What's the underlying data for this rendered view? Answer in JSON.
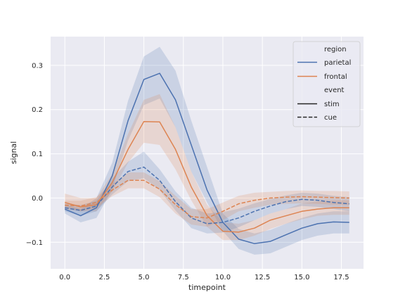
{
  "chart_data": {
    "type": "line",
    "title": "",
    "xlabel": "timepoint",
    "ylabel": "signal",
    "xlim": [
      -0.9,
      18.9
    ],
    "ylim": [
      -0.16,
      0.365
    ],
    "xticks": [
      0,
      2.5,
      5,
      7.5,
      10,
      12.5,
      15,
      17.5
    ],
    "xtick_labels": [
      "0.0",
      "2.5",
      "5.0",
      "7.5",
      "10.0",
      "12.5",
      "15.0",
      "17.5"
    ],
    "yticks": [
      -0.1,
      0,
      0.1,
      0.2,
      0.3
    ],
    "ytick_labels": [
      "−0.1",
      "0.0",
      "0.1",
      "0.2",
      "0.3"
    ],
    "grid": true,
    "background": "#eaeaf2",
    "legend": {
      "placement": "top-right",
      "hue_title": "region",
      "style_title": "event",
      "hue_items": [
        {
          "label": "parietal",
          "color": "#4c72b0"
        },
        {
          "label": "frontal",
          "color": "#dd8452"
        }
      ],
      "style_items": [
        {
          "label": "stim",
          "dash": "solid"
        },
        {
          "label": "cue",
          "dash": "dashed"
        }
      ]
    },
    "x": [
      0,
      1,
      2,
      3,
      4,
      5,
      6,
      7,
      8,
      9,
      10,
      11,
      12,
      13,
      14,
      15,
      16,
      17,
      18
    ],
    "series": [
      {
        "name": "parietal",
        "event": "stim",
        "color": "#4c72b0",
        "dash": "solid",
        "values": [
          -0.025,
          -0.04,
          -0.022,
          0.05,
          0.175,
          0.268,
          0.282,
          0.222,
          0.12,
          0.018,
          -0.055,
          -0.093,
          -0.103,
          -0.098,
          -0.083,
          -0.068,
          -0.058,
          -0.054,
          -0.055
        ],
        "ci_low": [
          -0.035,
          -0.055,
          -0.045,
          0.02,
          0.13,
          0.21,
          0.225,
          0.16,
          0.06,
          -0.01,
          -0.075,
          -0.115,
          -0.128,
          -0.125,
          -0.11,
          -0.095,
          -0.085,
          -0.08,
          -0.08
        ],
        "ci_high": [
          -0.015,
          -0.025,
          0.0,
          0.08,
          0.22,
          0.32,
          0.342,
          0.288,
          0.175,
          0.07,
          -0.035,
          -0.07,
          -0.08,
          -0.072,
          -0.058,
          -0.045,
          -0.035,
          -0.03,
          -0.03
        ]
      },
      {
        "name": "frontal",
        "event": "stim",
        "color": "#dd8452",
        "dash": "solid",
        "values": [
          -0.01,
          -0.02,
          -0.015,
          0.035,
          0.11,
          0.173,
          0.172,
          0.11,
          0.025,
          -0.04,
          -0.075,
          -0.077,
          -0.068,
          -0.05,
          -0.04,
          -0.03,
          -0.025,
          -0.022,
          -0.022
        ],
        "ci_low": [
          -0.02,
          -0.03,
          -0.03,
          0.015,
          0.08,
          0.125,
          0.12,
          0.065,
          -0.005,
          -0.065,
          -0.095,
          -0.095,
          -0.085,
          -0.07,
          -0.058,
          -0.048,
          -0.04,
          -0.038,
          -0.038
        ],
        "ci_high": [
          0.01,
          0.0,
          0.0,
          0.055,
          0.145,
          0.222,
          0.235,
          0.16,
          0.06,
          -0.015,
          -0.055,
          -0.058,
          -0.05,
          -0.035,
          -0.025,
          -0.012,
          -0.008,
          -0.005,
          -0.005
        ]
      },
      {
        "name": "parietal",
        "event": "cue",
        "color": "#4c72b0",
        "dash": "dashed",
        "values": [
          -0.022,
          -0.028,
          -0.018,
          0.025,
          0.06,
          0.07,
          0.04,
          -0.008,
          -0.045,
          -0.058,
          -0.055,
          -0.045,
          -0.03,
          -0.018,
          -0.008,
          -0.003,
          -0.005,
          -0.01,
          -0.013
        ],
        "ci_low": [
          -0.03,
          -0.04,
          -0.03,
          0.008,
          0.038,
          0.045,
          0.018,
          -0.028,
          -0.068,
          -0.08,
          -0.078,
          -0.066,
          -0.05,
          -0.035,
          -0.025,
          -0.018,
          -0.02,
          -0.025,
          -0.03
        ],
        "ci_high": [
          -0.012,
          -0.016,
          -0.006,
          0.044,
          0.082,
          0.105,
          0.065,
          0.015,
          -0.022,
          -0.035,
          -0.032,
          -0.024,
          -0.012,
          -0.002,
          0.006,
          0.012,
          0.01,
          0.005,
          0.002
        ]
      },
      {
        "name": "frontal",
        "event": "cue",
        "color": "#dd8452",
        "dash": "dashed",
        "values": [
          -0.016,
          -0.018,
          -0.01,
          0.018,
          0.04,
          0.04,
          0.02,
          -0.015,
          -0.042,
          -0.045,
          -0.03,
          -0.013,
          -0.005,
          0.0,
          0.002,
          0.003,
          0.002,
          0.001,
          0.0
        ],
        "ci_low": [
          -0.025,
          -0.03,
          -0.022,
          0.004,
          0.022,
          0.022,
          0.002,
          -0.035,
          -0.06,
          -0.065,
          -0.05,
          -0.03,
          -0.022,
          -0.015,
          -0.013,
          -0.012,
          -0.013,
          -0.015,
          -0.016
        ],
        "ci_high": [
          -0.006,
          -0.006,
          0.002,
          0.032,
          0.058,
          0.058,
          0.038,
          0.005,
          -0.025,
          -0.025,
          -0.01,
          0.005,
          0.012,
          0.014,
          0.016,
          0.017,
          0.016,
          0.016,
          0.015
        ]
      }
    ]
  }
}
